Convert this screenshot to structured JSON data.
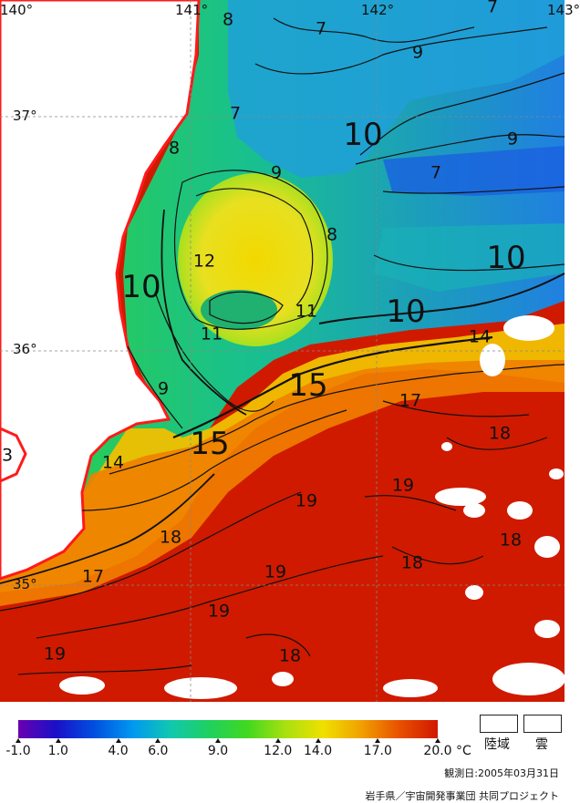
{
  "map": {
    "lon_labels": [
      "140°",
      "141°",
      "142°",
      "143°"
    ],
    "lat_labels": [
      "37°",
      "36°",
      "35°"
    ],
    "isotherm_labels": [
      {
        "text": "8",
        "size": "med"
      },
      {
        "text": "7",
        "size": "med"
      },
      {
        "text": "7",
        "size": "med"
      },
      {
        "text": "9",
        "size": "med"
      },
      {
        "text": "7",
        "size": "med"
      },
      {
        "text": "10",
        "size": "big"
      },
      {
        "text": "9",
        "size": "med"
      },
      {
        "text": "8",
        "size": "med"
      },
      {
        "text": "9",
        "size": "med"
      },
      {
        "text": "7",
        "size": "med"
      },
      {
        "text": "8",
        "size": "med"
      },
      {
        "text": "12",
        "size": "med"
      },
      {
        "text": "10",
        "size": "big"
      },
      {
        "text": "10",
        "size": "big"
      },
      {
        "text": "11",
        "size": "med"
      },
      {
        "text": "10",
        "size": "big"
      },
      {
        "text": "11",
        "size": "med"
      },
      {
        "text": "14",
        "size": "med"
      },
      {
        "text": "15",
        "size": "big"
      },
      {
        "text": "9",
        "size": "med"
      },
      {
        "text": "17",
        "size": "med"
      },
      {
        "text": "15",
        "size": "big"
      },
      {
        "text": "18",
        "size": "med"
      },
      {
        "text": "14",
        "size": "med"
      },
      {
        "text": "3",
        "size": "med"
      },
      {
        "text": "19",
        "size": "med"
      },
      {
        "text": "19",
        "size": "med"
      },
      {
        "text": "18",
        "size": "med"
      },
      {
        "text": "18",
        "size": "med"
      },
      {
        "text": "17",
        "size": "med"
      },
      {
        "text": "19",
        "size": "med"
      },
      {
        "text": "18",
        "size": "med"
      },
      {
        "text": "19",
        "size": "med"
      },
      {
        "text": "19",
        "size": "med"
      },
      {
        "text": "18",
        "size": "med"
      }
    ]
  },
  "legend": {
    "colors": [
      "#6a00b0",
      "#1a10c8",
      "#0050e0",
      "#0098f0",
      "#10c8b0",
      "#20d060",
      "#40d820",
      "#a8e010",
      "#f0e000",
      "#f0a000",
      "#e85000",
      "#d01800"
    ],
    "ticks": [
      "-1.0",
      "1.0",
      "4.0",
      "6.0",
      "9.0",
      "12.0",
      "14.0",
      "17.0",
      "20.0"
    ],
    "unit": "°C",
    "land_label": "陸域",
    "cloud_label": "雲",
    "observation_date": "観測日:2005年03月31日",
    "credit": "岩手県／宇宙開発事業団 共同プロジェクト"
  },
  "colors": {
    "land": "#ffffff",
    "coast": "#ff1a1a",
    "cold_water": "#1a9ae0",
    "warm_water": "#d01800"
  }
}
